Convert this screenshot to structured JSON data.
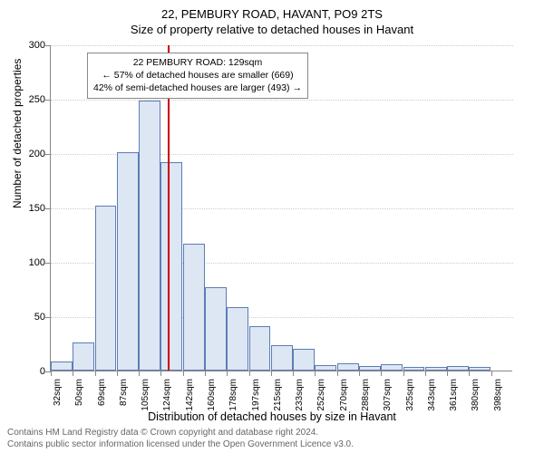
{
  "title_address": "22, PEMBURY ROAD, HAVANT, PO9 2TS",
  "subtitle": "Size of property relative to detached houses in Havant",
  "chart": {
    "type": "histogram",
    "ylim": [
      0,
      300
    ],
    "ytick_step": 50,
    "yticks": [
      0,
      50,
      100,
      150,
      200,
      250,
      300
    ],
    "bar_fill": "#dde6f3",
    "bar_border": "#5b7db5",
    "refline_color": "#cc0000",
    "grid_color": "#cccccc",
    "background": "#ffffff",
    "categories": [
      "32sqm",
      "50sqm",
      "69sqm",
      "87sqm",
      "105sqm",
      "124sqm",
      "142sqm",
      "160sqm",
      "178sqm",
      "197sqm",
      "215sqm",
      "233sqm",
      "252sqm",
      "270sqm",
      "288sqm",
      "307sqm",
      "325sqm",
      "343sqm",
      "361sqm",
      "380sqm",
      "398sqm"
    ],
    "values": [
      8,
      26,
      152,
      201,
      248,
      192,
      117,
      77,
      58,
      41,
      23,
      20,
      5,
      7,
      4,
      6,
      3,
      3,
      4,
      3
    ],
    "reference_index": 5,
    "yaxis_title": "Number of detached properties",
    "xaxis_title": "Distribution of detached houses by size in Havant"
  },
  "annotation": {
    "line1": "22 PEMBURY ROAD: 129sqm",
    "line2": "← 57% of detached houses are smaller (669)",
    "line3": "42% of semi-detached houses are larger (493) →"
  },
  "footer": {
    "line1": "Contains HM Land Registry data © Crown copyright and database right 2024.",
    "line2": "Contains public sector information licensed under the Open Government Licence v3.0."
  }
}
